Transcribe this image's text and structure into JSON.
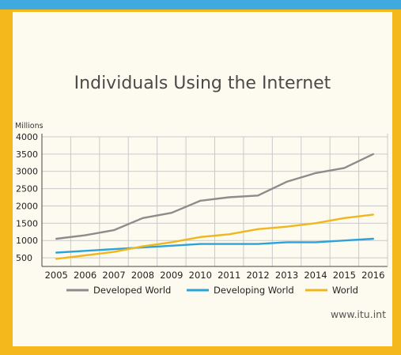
{
  "chart_data": {
    "type": "line",
    "title": "Individuals Using the Internet",
    "ylabel": "Millions",
    "xlabel": "",
    "x": [
      "2005",
      "2006",
      "2007",
      "2008",
      "2009",
      "2010",
      "2011",
      "2012",
      "2013",
      "2014",
      "2015",
      "2016"
    ],
    "yticks": [
      500,
      1000,
      1500,
      2000,
      2500,
      3000,
      3500,
      4000
    ],
    "ylim": [
      250,
      4000
    ],
    "grid": true,
    "legend_position": "bottom",
    "series": [
      {
        "name": "Developed World",
        "color": "#8c8c8c",
        "values": [
          1050,
          1150,
          1300,
          1650,
          1800,
          2150,
          2250,
          2300,
          2700,
          2950,
          3100,
          3500
        ]
      },
      {
        "name": "Developing World",
        "color": "#2ba3d8",
        "values": [
          650,
          700,
          750,
          800,
          850,
          900,
          900,
          900,
          950,
          950,
          1000,
          1050
        ]
      },
      {
        "name": "World",
        "color": "#efb71c",
        "values": [
          470,
          570,
          670,
          830,
          950,
          1100,
          1180,
          1330,
          1400,
          1500,
          1650,
          1750
        ]
      }
    ]
  },
  "credit": "www.itu.int"
}
